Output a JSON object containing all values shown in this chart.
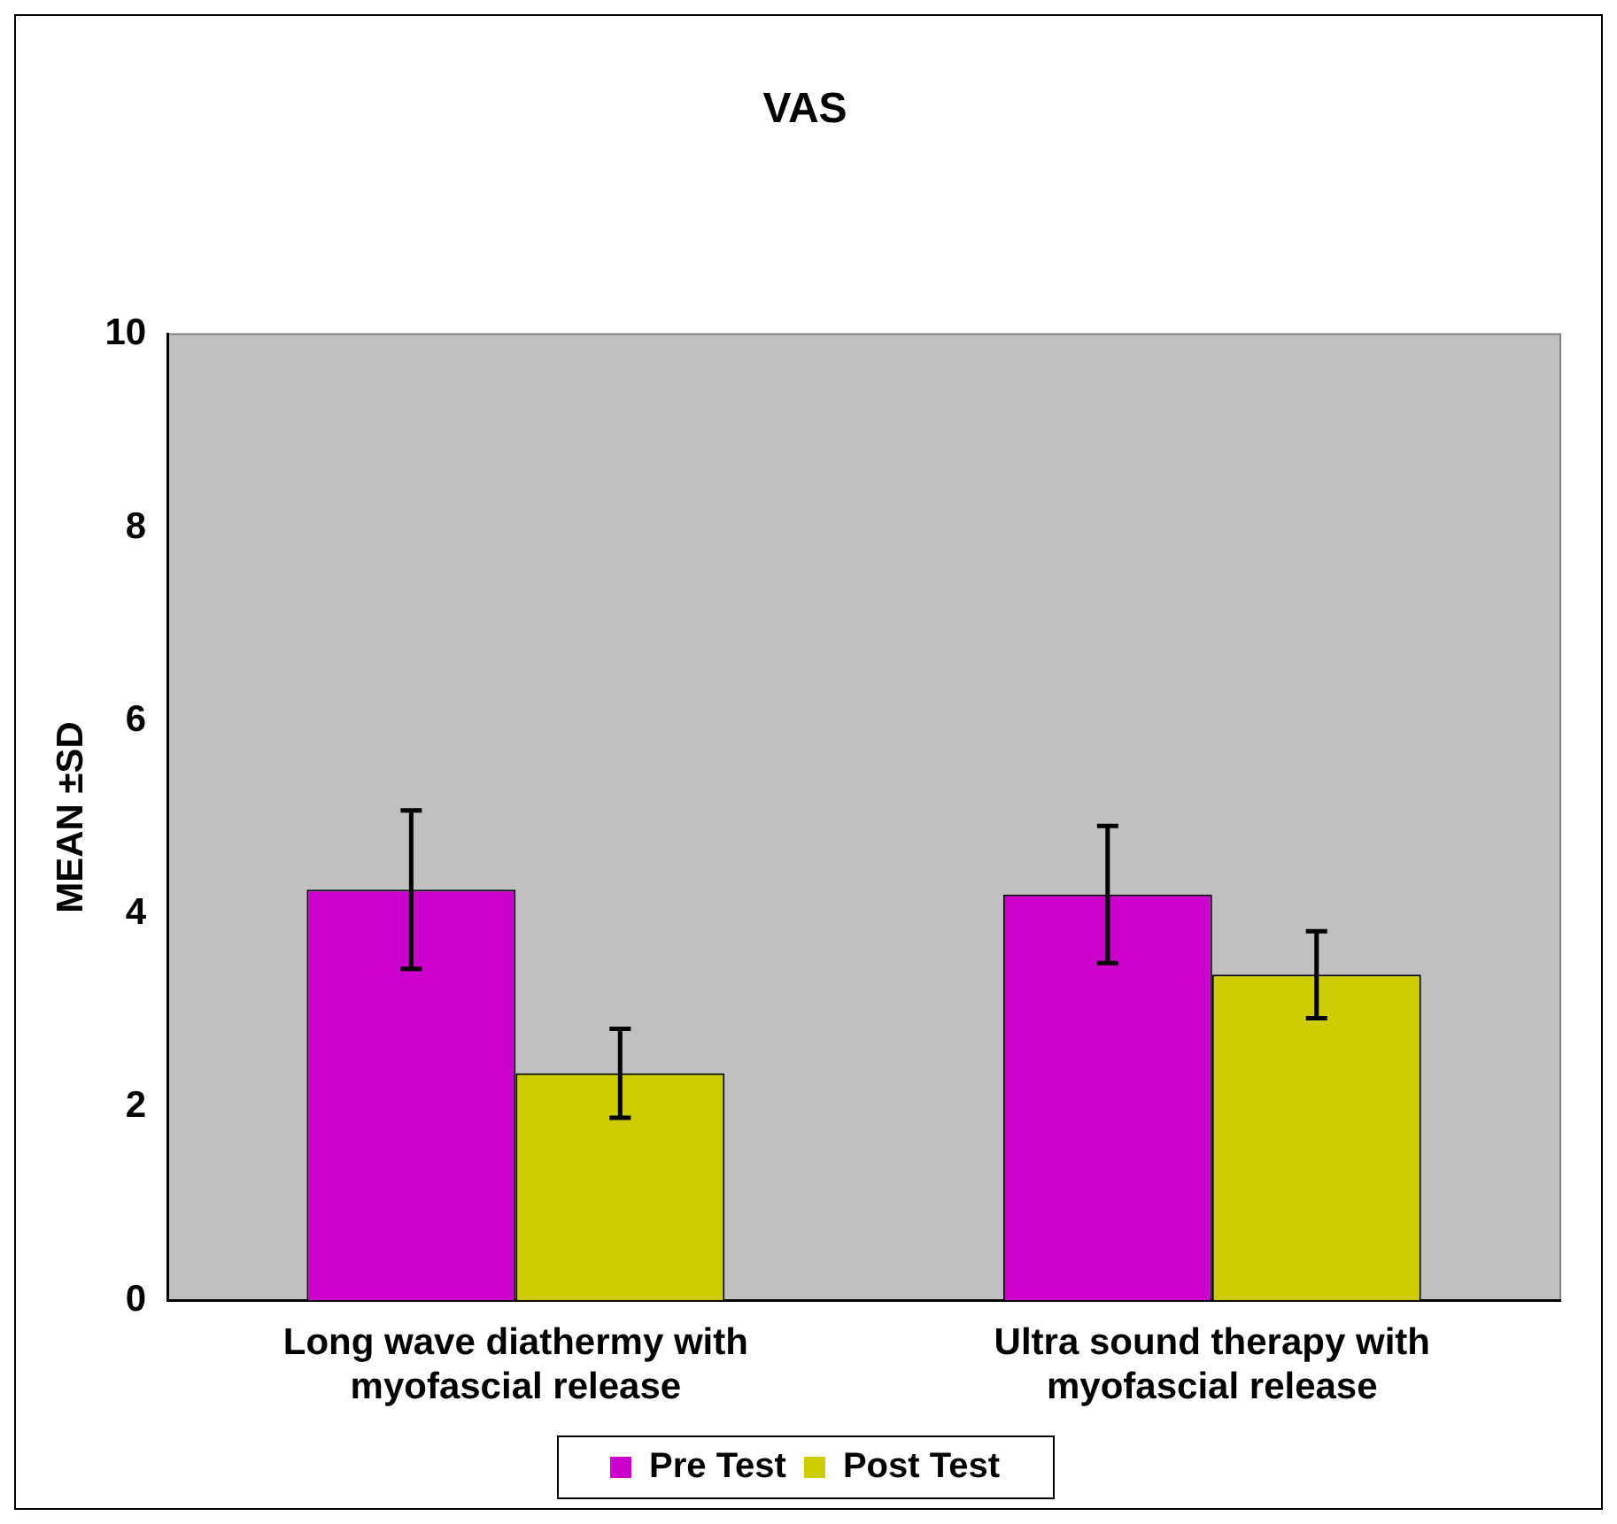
{
  "chart_data": {
    "type": "bar",
    "title": "VAS",
    "ylabel": "MEAN ±SD",
    "categories": [
      "Long wave diathermy with myofascial release",
      "Ultra sound therapy with myofascial release"
    ],
    "series": [
      {
        "name": "Pre Test",
        "color": "#cc00cc",
        "values": [
          4.25,
          4.2
        ],
        "errors": [
          0.82,
          0.71
        ]
      },
      {
        "name": "Post Test",
        "color": "#cccc00",
        "values": [
          2.35,
          3.37
        ],
        "errors": [
          0.46,
          0.45
        ]
      }
    ],
    "ylim": [
      0,
      10
    ],
    "yticks": [
      0,
      2,
      4,
      6,
      8,
      10
    ],
    "grid": false,
    "legend": "bottom"
  }
}
